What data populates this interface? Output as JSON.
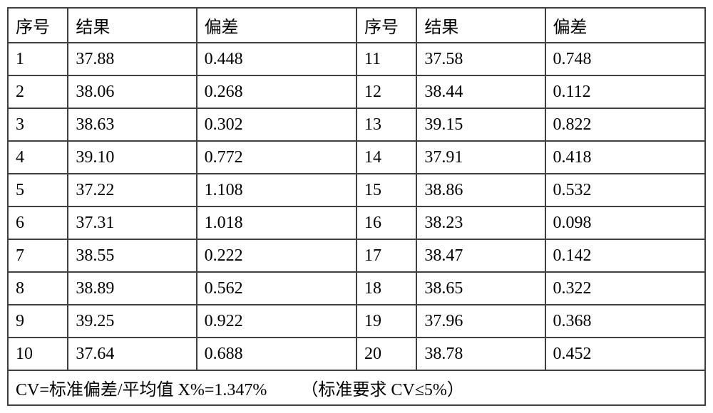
{
  "table": {
    "border_color": "#404040",
    "text_color": "#000000",
    "background_color": "#ffffff",
    "font_size_pt": 18,
    "columns": {
      "left": [
        "序号",
        "结果",
        "偏差"
      ],
      "right": [
        "序号",
        "结果",
        "偏差"
      ]
    },
    "rows": [
      {
        "l_idx": "1",
        "l_result": "37.88",
        "l_dev": "0.448",
        "r_idx": "11",
        "r_result": "37.58",
        "r_dev": "0.748"
      },
      {
        "l_idx": "2",
        "l_result": "38.06",
        "l_dev": "0.268",
        "r_idx": "12",
        "r_result": "38.44",
        "r_dev": "0.112"
      },
      {
        "l_idx": "3",
        "l_result": "38.63",
        "l_dev": "0.302",
        "r_idx": "13",
        "r_result": "39.15",
        "r_dev": "0.822"
      },
      {
        "l_idx": "4",
        "l_result": "39.10",
        "l_dev": "0.772",
        "r_idx": "14",
        "r_result": "37.91",
        "r_dev": "0.418"
      },
      {
        "l_idx": "5",
        "l_result": "37.22",
        "l_dev": "1.108",
        "r_idx": "15",
        "r_result": "38.86",
        "r_dev": "0.532"
      },
      {
        "l_idx": "6",
        "l_result": "37.31",
        "l_dev": "1.018",
        "r_idx": "16",
        "r_result": "38.23",
        "r_dev": "0.098"
      },
      {
        "l_idx": "7",
        "l_result": "38.55",
        "l_dev": "0.222",
        "r_idx": "17",
        "r_result": "38.47",
        "r_dev": "0.142"
      },
      {
        "l_idx": "8",
        "l_result": "38.89",
        "l_dev": "0.562",
        "r_idx": "18",
        "r_result": "38.65",
        "r_dev": "0.322"
      },
      {
        "l_idx": "9",
        "l_result": "39.25",
        "l_dev": "0.922",
        "r_idx": "19",
        "r_result": "37.96",
        "r_dev": "0.368"
      },
      {
        "l_idx": "10",
        "l_result": "37.64",
        "l_dev": "0.688",
        "r_idx": "20",
        "r_result": "38.78",
        "r_dev": "0.452"
      }
    ],
    "footer": {
      "part1": "CV=标准偏差/平均值 X%=1.347%",
      "part2": "（标准要求 CV≤5%）"
    }
  }
}
